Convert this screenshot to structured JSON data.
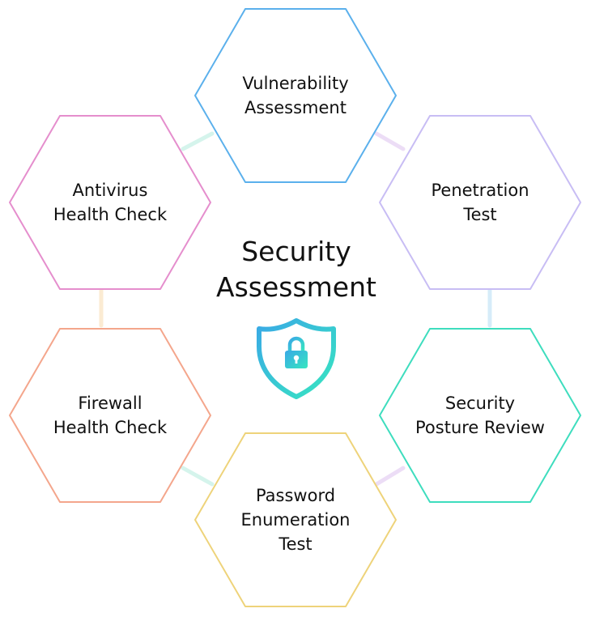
{
  "title": {
    "line1": "Security",
    "line2": "Assessment"
  },
  "center_icon": "shield-lock-icon",
  "nodes": [
    {
      "id": "vulnerability-assessment",
      "lines": [
        "Vulnerability",
        "Assessment"
      ],
      "color": "#5BB0EC"
    },
    {
      "id": "penetration-test",
      "lines": [
        "Penetration",
        "Test"
      ],
      "color": "#C8BDF4"
    },
    {
      "id": "security-posture-review",
      "lines": [
        "Security",
        "Posture Review"
      ],
      "color": "#3EDDBE"
    },
    {
      "id": "password-enumeration-test",
      "lines": [
        "Password",
        "Enumeration",
        "Test"
      ],
      "color": "#EED37A"
    },
    {
      "id": "firewall-health-check",
      "lines": [
        "Firewall",
        "Health Check"
      ],
      "color": "#F4A68C"
    },
    {
      "id": "antivirus-health-check",
      "lines": [
        "Antivirus",
        "Health Check"
      ],
      "color": "#E58ECD"
    }
  ],
  "connector_colors": [
    "#ECDDF6",
    "#D6ECF9",
    "#ECDDF6",
    "#D5F4EC",
    "#FBEBD2",
    "#D5F4EC"
  ],
  "shield_gradient": [
    "#39A9E6",
    "#38E6C0"
  ]
}
